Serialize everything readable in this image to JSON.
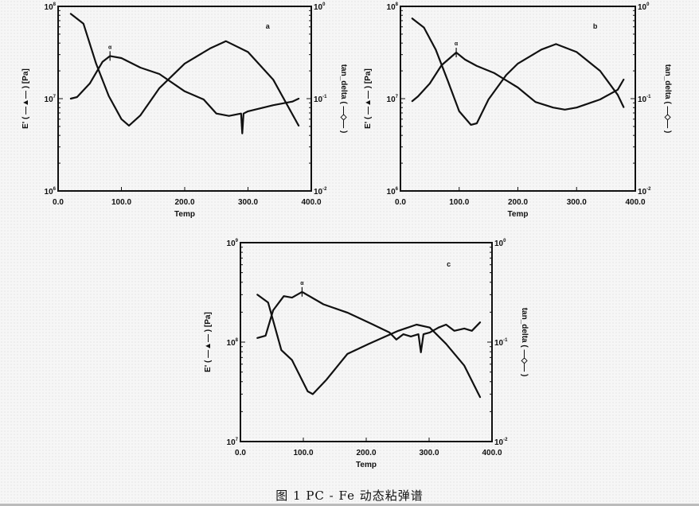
{
  "caption": "图 1    PC - Fe 动态粘弹谱",
  "chart_data": [
    {
      "type": "line",
      "panel_label": "a",
      "xlabel": "Temp",
      "ylabel_left": "E' ( —▲— ) [Pa]",
      "ylabel_right": "tan_delta ( —◇— )",
      "xlim": [
        0,
        400
      ],
      "xticks": [
        "0.0",
        "100.0",
        "200.0",
        "300.0",
        "400.0"
      ],
      "ylim_left": [
        1000000.0,
        100000000.0
      ],
      "yticks_left": [
        {
          "base": "10",
          "exp": "6"
        },
        {
          "base": "10",
          "exp": "7"
        },
        {
          "base": "10",
          "exp": "8"
        }
      ],
      "ylim_right": [
        0.01,
        1
      ],
      "yticks_right": [
        {
          "base": "10",
          "exp": "-2"
        },
        {
          "base": "10",
          "exp": "-1"
        },
        {
          "base": "10",
          "exp": "0"
        }
      ],
      "yscale": "log",
      "peak_marker": {
        "label": "α",
        "x": 82
      },
      "series": [
        {
          "name": "E'",
          "axis": "left",
          "x": [
            20,
            40,
            60,
            80,
            100,
            112,
            130,
            160,
            200,
            240,
            265,
            300,
            340,
            380
          ],
          "y": [
            83000000.0,
            65000000.0,
            24000000.0,
            10700000.0,
            6000000.0,
            5100000.0,
            6600000.0,
            13000000.0,
            24000000.0,
            35000000.0,
            42000000.0,
            32000000.0,
            16000000.0,
            5100000.0
          ]
        },
        {
          "name": "tan_delta",
          "axis": "right",
          "x": [
            20,
            30,
            50,
            70,
            82,
            100,
            130,
            160,
            200,
            230,
            250,
            270,
            289,
            291,
            293,
            300,
            340,
            370,
            380
          ],
          "y": [
            0.1,
            0.104,
            0.146,
            0.25,
            0.29,
            0.275,
            0.217,
            0.185,
            0.12,
            0.098,
            0.069,
            0.065,
            0.069,
            0.042,
            0.069,
            0.073,
            0.085,
            0.093,
            0.1
          ]
        }
      ]
    },
    {
      "type": "line",
      "panel_label": "b",
      "xlabel": "Temp",
      "ylabel_left": "E' ( —▲— ) [Pa]",
      "ylabel_right": "tan_delta ( —◇— )",
      "xlim": [
        0,
        400
      ],
      "xticks": [
        "0.0",
        "100.0",
        "200.0",
        "300.0",
        "400.0"
      ],
      "ylim_left": [
        1000000.0,
        100000000.0
      ],
      "yticks_left": [
        {
          "base": "10",
          "exp": "6"
        },
        {
          "base": "10",
          "exp": "7"
        },
        {
          "base": "10",
          "exp": "8"
        }
      ],
      "ylim_right": [
        0.01,
        1
      ],
      "yticks_right": [
        {
          "base": "10",
          "exp": "-2"
        },
        {
          "base": "10",
          "exp": "-1"
        },
        {
          "base": "10",
          "exp": "0"
        }
      ],
      "yscale": "log",
      "peak_marker": {
        "label": "α",
        "x": 95
      },
      "series": [
        {
          "name": "E'",
          "axis": "left",
          "x": [
            20,
            40,
            60,
            80,
            100,
            120,
            130,
            150,
            180,
            200,
            240,
            265,
            300,
            340,
            370,
            380
          ],
          "y": [
            74000000.0,
            59000000.0,
            34000000.0,
            16000000.0,
            7300000.0,
            5200000.0,
            5400000.0,
            9800000.0,
            18000000.0,
            24000000.0,
            34000000.0,
            39000000.0,
            32000000.0,
            20000000.0,
            11000000.0,
            8100000.0
          ]
        },
        {
          "name": "tan_delta",
          "axis": "right",
          "x": [
            20,
            30,
            50,
            70,
            95,
            110,
            130,
            160,
            200,
            230,
            260,
            280,
            300,
            340,
            370,
            380
          ],
          "y": [
            0.094,
            0.106,
            0.146,
            0.23,
            0.316,
            0.265,
            0.226,
            0.189,
            0.132,
            0.092,
            0.08,
            0.076,
            0.08,
            0.098,
            0.125,
            0.161
          ]
        }
      ]
    },
    {
      "type": "line",
      "panel_label": "c",
      "xlabel": "Temp",
      "ylabel_left": "E' ( —▲— ) [Pa]",
      "ylabel_right": "tan_delta ( —◇— )",
      "xlim": [
        0,
        400
      ],
      "xticks": [
        "0.0",
        "100.0",
        "200.0",
        "300.0",
        "400.0"
      ],
      "ylim_left": [
        10000000.0,
        1000000000.0
      ],
      "yticks_left": [
        {
          "base": "10",
          "exp": "7"
        },
        {
          "base": "10",
          "exp": "8"
        },
        {
          "base": "10",
          "exp": "9"
        }
      ],
      "ylim_right": [
        0.01,
        1
      ],
      "yticks_right": [
        {
          "base": "10",
          "exp": "-2"
        },
        {
          "base": "10",
          "exp": "-1"
        },
        {
          "base": "10",
          "exp": "0"
        }
      ],
      "yscale": "log",
      "peak_marker": {
        "label": "α",
        "x": 98
      },
      "series": [
        {
          "name": "E'",
          "axis": "left",
          "x": [
            27,
            44,
            65,
            82,
            107,
            115,
            137,
            170,
            204,
            251,
            280,
            301,
            327,
            356,
            381
          ],
          "y": [
            300000000.0,
            250000000.0,
            83000000.0,
            66000000.0,
            32000000.0,
            30000000.0,
            42000000.0,
            76000000.0,
            96000000.0,
            130000000.0,
            150000000.0,
            140000000.0,
            96000000.0,
            58000000.0,
            28000000.0
          ]
        },
        {
          "name": "tan_delta",
          "axis": "right",
          "x": [
            27,
            40,
            52,
            69,
            82,
            98,
            132,
            170,
            208,
            237,
            248,
            259,
            271,
            283,
            287,
            291,
            301,
            315,
            327,
            340,
            356,
            368,
            381
          ],
          "y": [
            0.11,
            0.116,
            0.209,
            0.29,
            0.28,
            0.32,
            0.24,
            0.198,
            0.153,
            0.125,
            0.106,
            0.12,
            0.114,
            0.12,
            0.079,
            0.12,
            0.125,
            0.14,
            0.15,
            0.13,
            0.137,
            0.13,
            0.158
          ]
        }
      ]
    }
  ]
}
